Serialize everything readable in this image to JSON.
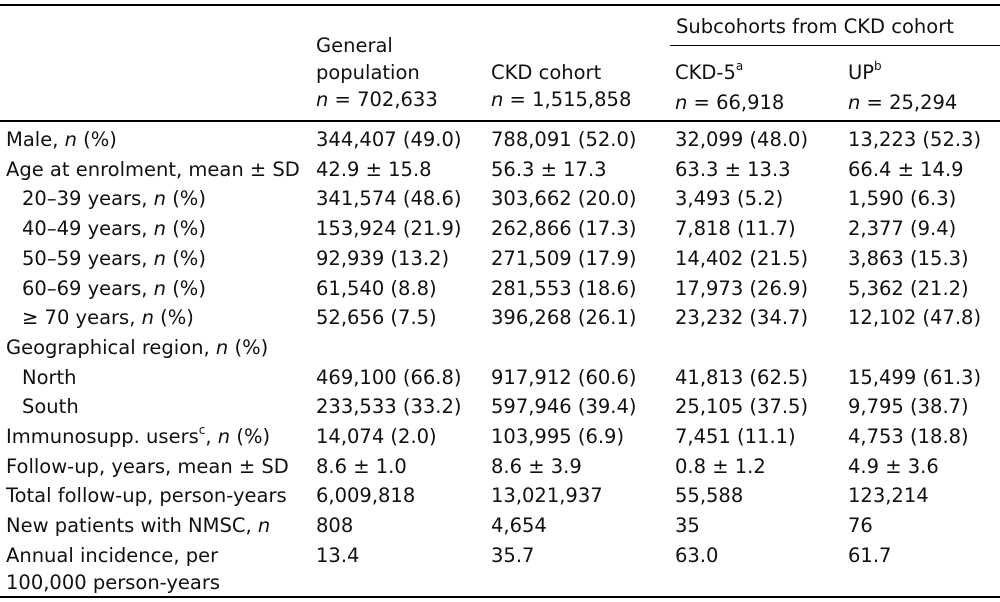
{
  "header": {
    "group": "Subcohorts from CKD cohort",
    "columns": [
      {
        "lines": [
          "General",
          "population"
        ],
        "n": "702,633"
      },
      {
        "lines": [
          "CKD cohort"
        ],
        "n": "1,515,858"
      },
      {
        "lines": [
          "CKD-5"
        ],
        "sup": "a",
        "n": "66,918"
      },
      {
        "lines": [
          "UP"
        ],
        "sup": "b",
        "n": "25,294"
      }
    ]
  },
  "rows": [
    {
      "label": "Male, ",
      "label_n": "n",
      "label_tail": " (%)",
      "values": [
        "344,407 (49.0)",
        "788,091 (52.0)",
        "32,099 (48.0)",
        "13,223 (52.3)"
      ]
    },
    {
      "label": "Age at enrolment, mean ± SD",
      "values": [
        "42.9 ± 15.8",
        "56.3 ± 17.3",
        "63.3 ± 13.3",
        "66.4 ± 14.9"
      ]
    },
    {
      "label": "20–39 years, ",
      "label_n": "n",
      "label_tail": " (%)",
      "indent": true,
      "values": [
        "341,574 (48.6)",
        "303,662 (20.0)",
        "3,493 (5.2)",
        "1,590 (6.3)"
      ]
    },
    {
      "label": "40–49 years, ",
      "label_n": "n",
      "label_tail": " (%)",
      "indent": true,
      "values": [
        "153,924 (21.9)",
        "262,866 (17.3)",
        "7,818 (11.7)",
        "2,377 (9.4)"
      ]
    },
    {
      "label": "50–59 years, ",
      "label_n": "n",
      "label_tail": " (%)",
      "indent": true,
      "values": [
        "92,939 (13.2)",
        "271,509 (17.9)",
        "14,402 (21.5)",
        "3,863 (15.3)"
      ]
    },
    {
      "label": "60–69 years, ",
      "label_n": "n",
      "label_tail": " (%)",
      "indent": true,
      "values": [
        "61,540 (8.8)",
        "281,553 (18.6)",
        "17,973 (26.9)",
        "5,362 (21.2)"
      ]
    },
    {
      "label": "≥ 70 years, ",
      "label_n": "n",
      "label_tail": " (%)",
      "indent": true,
      "values": [
        "52,656 (7.5)",
        "396,268 (26.1)",
        "23,232 (34.7)",
        "12,102 (47.8)"
      ]
    },
    {
      "label": "Geographical region, ",
      "label_n": "n",
      "label_tail": " (%)",
      "values": [
        "",
        "",
        "",
        ""
      ]
    },
    {
      "label": "North",
      "indent": true,
      "values": [
        "469,100 (66.8)",
        "917,912 (60.6)",
        "41,813 (62.5)",
        "15,499 (61.3)"
      ]
    },
    {
      "label": "South",
      "indent": true,
      "values": [
        "233,533 (33.2)",
        "597,946 (39.4)",
        "25,105 (37.5)",
        "9,795 (38.7)"
      ]
    },
    {
      "label": "Immunosupp. users",
      "label_sup": "c",
      "label_tail2": ", ",
      "label_n": "n",
      "label_tail": " (%)",
      "values": [
        "14,074 (2.0)",
        "103,995 (6.9)",
        "7,451 (11.1)",
        "4,753 (18.8)"
      ]
    },
    {
      "label": "Follow-up, years, mean ± SD",
      "values": [
        "8.6 ± 1.0",
        "8.6 ± 3.9",
        "0.8 ± 1.2",
        "4.9 ± 3.6"
      ]
    },
    {
      "label": "Total follow-up, person-years",
      "values": [
        "6,009,818",
        "13,021,937",
        "55,588",
        "123,214"
      ]
    },
    {
      "label": "New patients with NMSC, ",
      "label_n": "n",
      "values": [
        "808",
        "4,654",
        "35",
        "76"
      ]
    },
    {
      "label": "Annual incidence, per",
      "label_line2": "100,000 person-years",
      "values": [
        "13.4",
        "35.7",
        "63.0",
        "61.7"
      ]
    }
  ]
}
